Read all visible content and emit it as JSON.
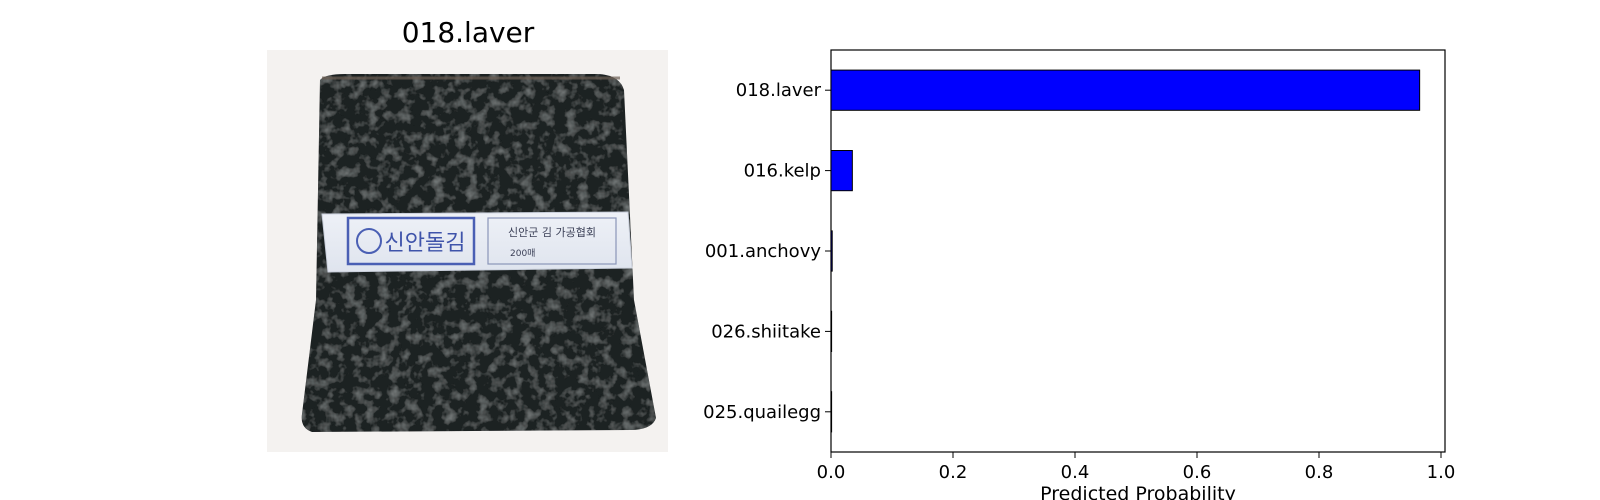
{
  "image_panel": {
    "title": "018.laver",
    "photo_label": {
      "brand": "신안돌김",
      "maker": "신안군 김 가공협회",
      "weight": "200매"
    }
  },
  "chart_data": {
    "type": "bar",
    "orientation": "horizontal",
    "categories": [
      "018.laver",
      "016.kelp",
      "001.anchovy",
      "026.shiitake",
      "025.quailegg"
    ],
    "values": [
      0.965,
      0.035,
      0.002,
      0.0005,
      0.0003
    ],
    "xlabel": "Predicted Probability",
    "ylabel": "",
    "xlim": [
      0.0,
      1.0
    ],
    "xticks": [
      "0.0",
      "0.2",
      "0.4",
      "0.6",
      "0.8",
      "1.0"
    ],
    "bar_color": "#0000ff",
    "edge_color": "#000000",
    "grid": false
  }
}
